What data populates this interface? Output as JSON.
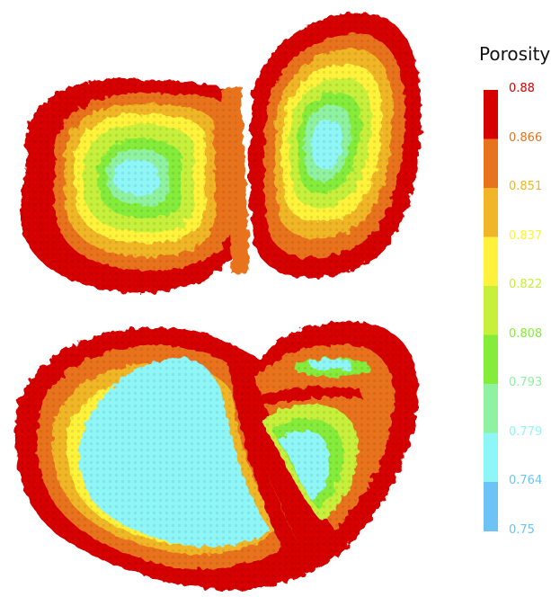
{
  "legend": {
    "title": "Porosity",
    "levels": [
      {
        "label": "0.88",
        "color": "#d60000"
      },
      {
        "label": "0.866",
        "color": "#e8731e"
      },
      {
        "label": "0.851",
        "color": "#f0b627"
      },
      {
        "label": "0.837",
        "color": "#fff23a"
      },
      {
        "label": "0.822",
        "color": "#c6f03a"
      },
      {
        "label": "0.808",
        "color": "#86ec3a"
      },
      {
        "label": "0.793",
        "color": "#8ef2a0"
      },
      {
        "label": "0.779",
        "color": "#8ff6f7"
      },
      {
        "label": "0.764",
        "color": "#6ec3f5"
      },
      {
        "label": "0.75",
        "color": "#6ec3f5"
      }
    ]
  }
}
